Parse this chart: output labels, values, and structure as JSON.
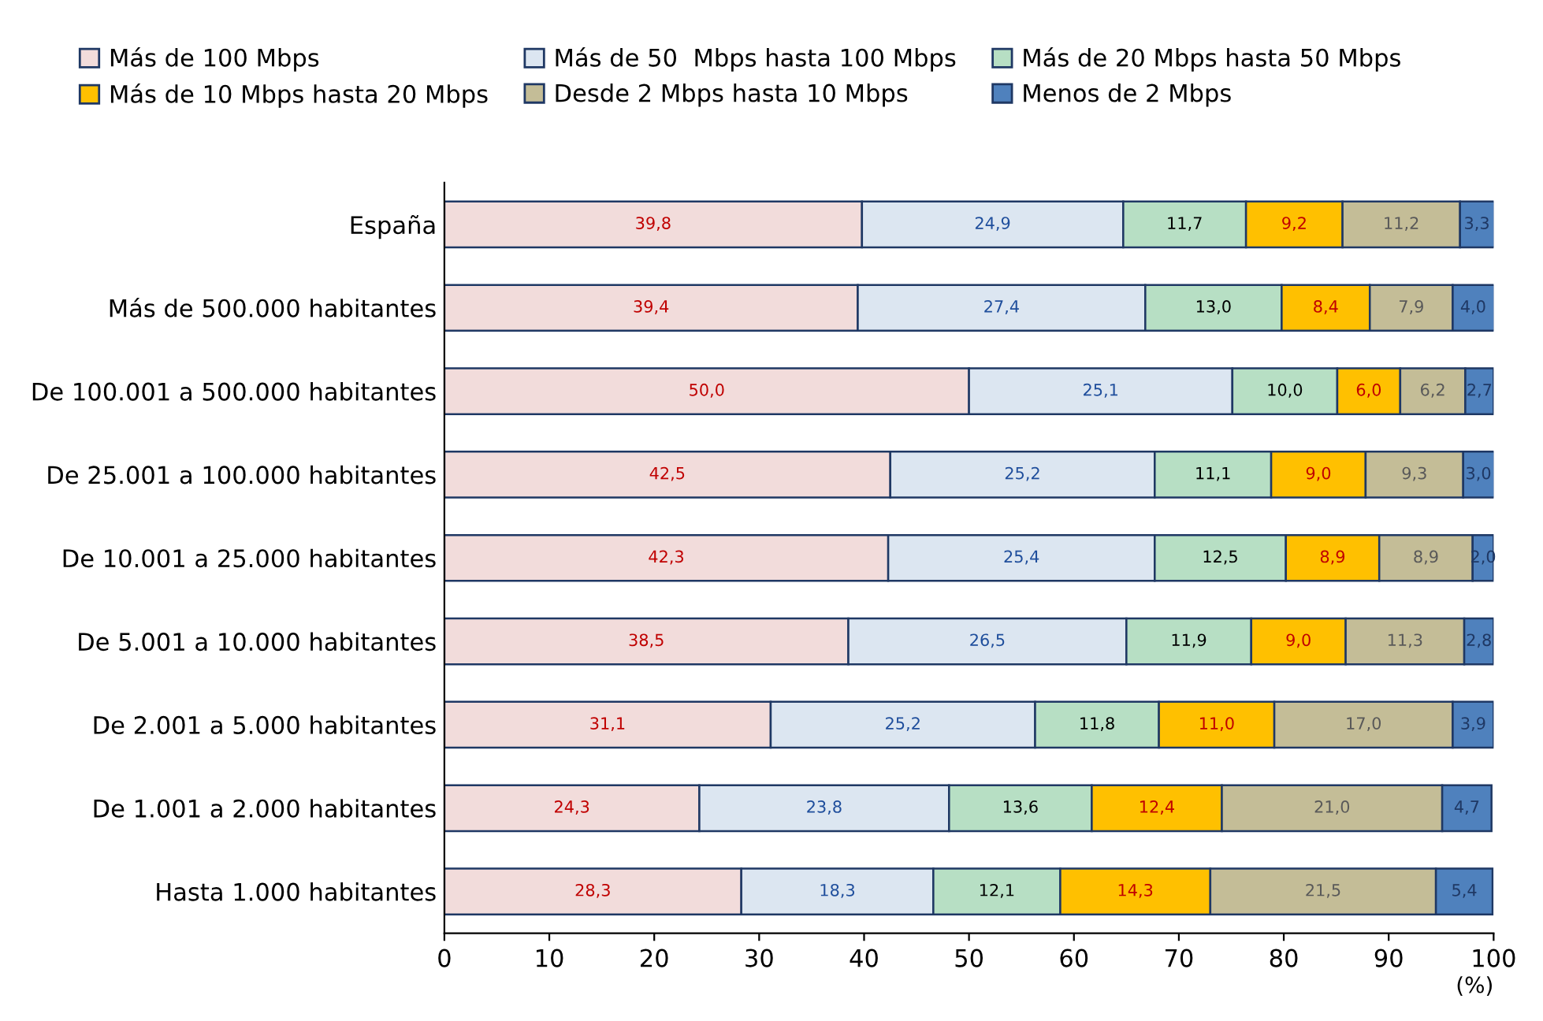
{
  "chart_data": {
    "type": "bar",
    "orientation": "horizontal",
    "stacked": true,
    "xlabel": "(%)",
    "xlim": [
      0,
      100
    ],
    "xticks": [
      0,
      10,
      20,
      30,
      40,
      50,
      60,
      70,
      80,
      90,
      100
    ],
    "legend": "top",
    "data_labels": true,
    "categories": [
      "España",
      "Más de 500.000 habitantes",
      "De 100.001 a 500.000 habitantes",
      "De 25.001 a 100.000 habitantes",
      "De 10.001 a 25.000 habitantes",
      "De 5.001 a 10.000 habitantes",
      "De 2.001 a 5.000 habitantes",
      "De 1.001 a 2.000 habitantes",
      "Hasta 1.000 habitantes"
    ],
    "series": [
      {
        "name": "Más de 100 Mbps",
        "color": "#f2dcdb",
        "values": [
          39.8,
          39.4,
          50.0,
          42.5,
          42.3,
          38.5,
          31.1,
          24.3,
          28.3
        ],
        "value_labels": [
          "39,8",
          "39,4",
          "50,0",
          "42,5",
          "42,3",
          "38,5",
          "31,1",
          "24,3",
          "28,3"
        ]
      },
      {
        "name": "Más de 50  Mbps hasta 100 Mbps",
        "color": "#dce6f1",
        "values": [
          24.9,
          27.4,
          25.1,
          25.2,
          25.4,
          26.5,
          25.2,
          23.8,
          18.3
        ],
        "value_labels": [
          "24,9",
          "27,4",
          "25,1",
          "25,2",
          "25,4",
          "26,5",
          "25,2",
          "23,8",
          "18,3"
        ]
      },
      {
        "name": "Más de 20 Mbps hasta 50 Mbps",
        "color": "#b7dfc4",
        "values": [
          11.7,
          13.0,
          10.0,
          11.1,
          12.5,
          11.9,
          11.8,
          13.6,
          12.1
        ],
        "value_labels": [
          "11,7",
          "13,0",
          "10,0",
          "11,1",
          "12,5",
          "11,9",
          "11,8",
          "13,6",
          "12,1"
        ]
      },
      {
        "name": "Más de 10 Mbps hasta 20 Mbps",
        "color": "#ffc000",
        "values": [
          9.2,
          8.4,
          6.0,
          9.0,
          8.9,
          9.0,
          11.0,
          12.4,
          14.3
        ],
        "value_labels": [
          "9,2",
          "8,4",
          "6,0",
          "9,0",
          "8,9",
          "9,0",
          "11,0",
          "12,4",
          "14,3"
        ]
      },
      {
        "name": "Desde 2 Mbps hasta 10 Mbps",
        "color": "#c4bd97",
        "values": [
          11.2,
          7.9,
          6.2,
          9.3,
          8.9,
          11.3,
          17.0,
          21.0,
          21.5
        ],
        "value_labels": [
          "11,2",
          "7,9",
          "6,2",
          "9,3",
          "8,9",
          "11,3",
          "17,0",
          "21,0",
          "21,5"
        ]
      },
      {
        "name": "Menos de 2 Mbps",
        "color": "#4f81bd",
        "values": [
          3.3,
          4.0,
          2.7,
          3.0,
          2.0,
          2.8,
          3.9,
          4.7,
          5.4
        ],
        "value_labels": [
          "3,3",
          "4,0",
          "2,7",
          "3,0",
          "2,0",
          "2,8",
          "3,9",
          "4,7",
          "5,4"
        ]
      }
    ]
  }
}
